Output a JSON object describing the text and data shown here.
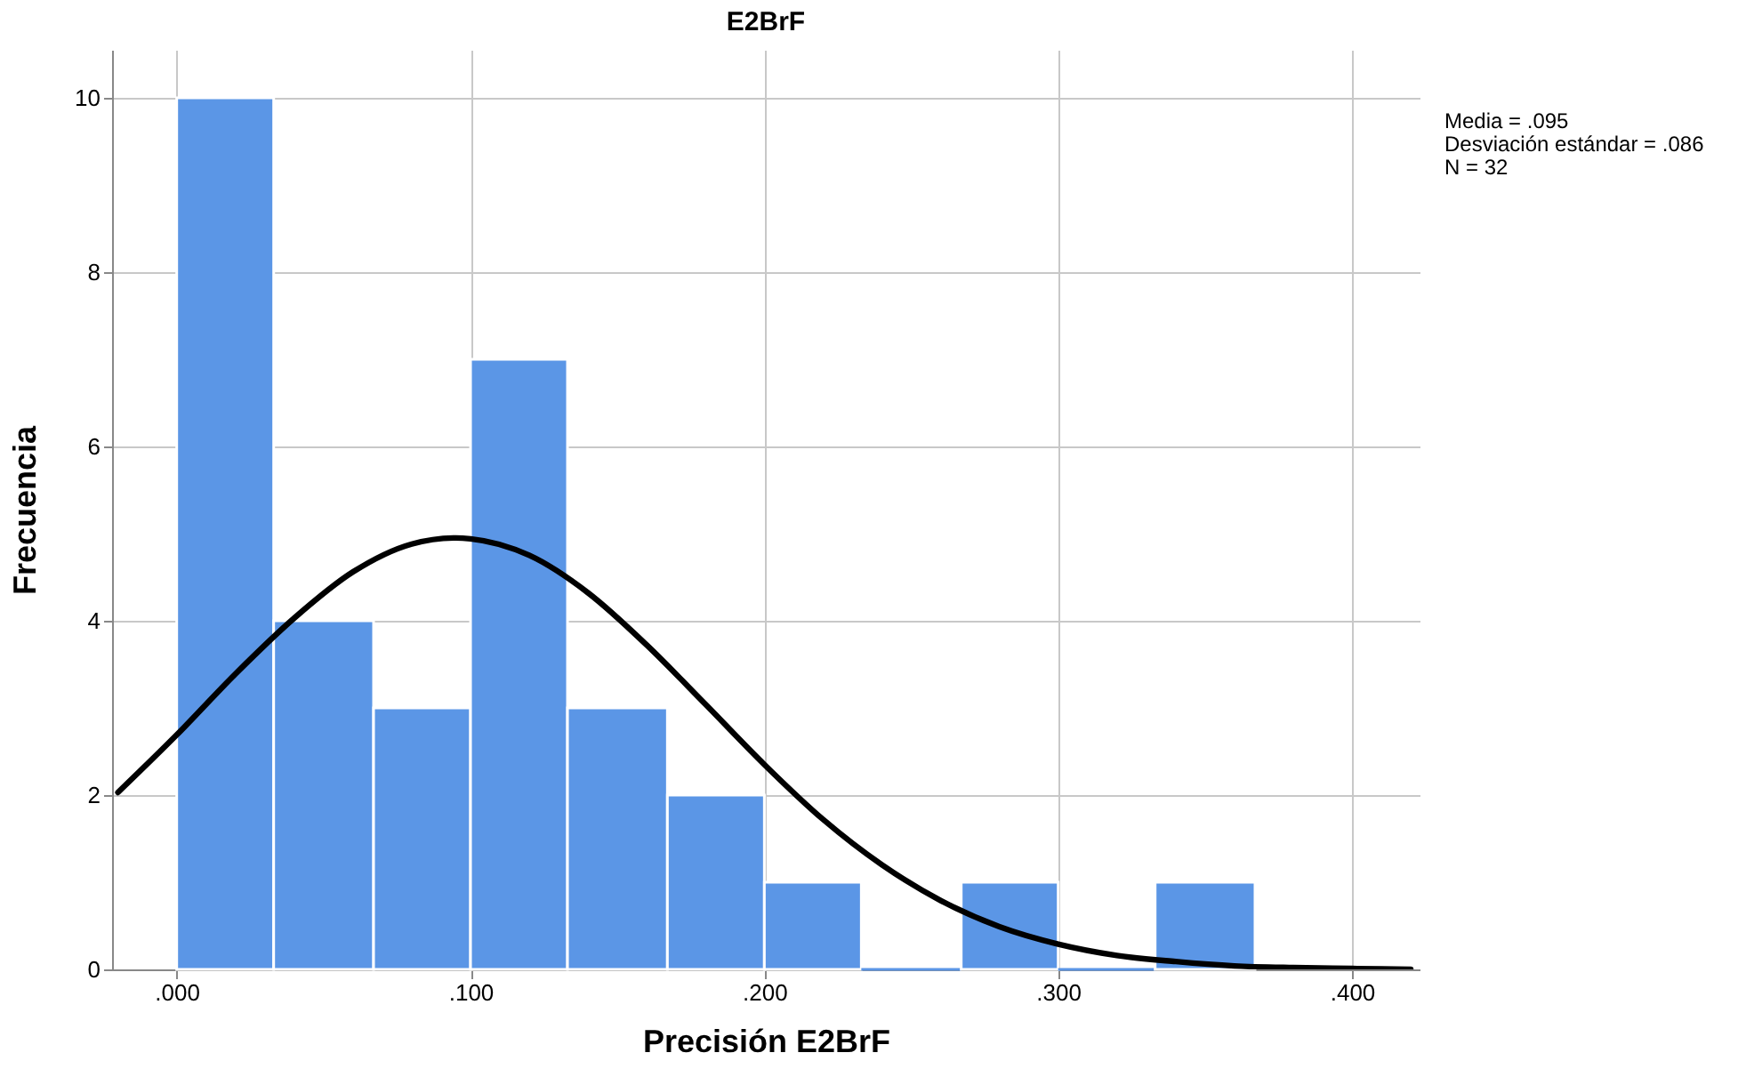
{
  "chart_data": {
    "type": "histogram",
    "title": "E2BrF",
    "xlabel": "Precisión E2BrF",
    "ylabel": "Frecuencia",
    "series": [
      {
        "color": "#5b96e6",
        "bins": [
          0.0,
          0.033,
          0.067,
          0.1,
          0.133,
          0.167,
          0.2,
          0.233,
          0.267,
          0.3,
          0.333,
          0.367
        ],
        "values": [
          10,
          4,
          3,
          7,
          3,
          2,
          1,
          0,
          1,
          0,
          1
        ]
      },
      {
        "type": "line",
        "color": "#000000",
        "x": [
          -0.02,
          0.0,
          0.02,
          0.04,
          0.06,
          0.08,
          0.095,
          0.1,
          0.12,
          0.14,
          0.16,
          0.18,
          0.2,
          0.22,
          0.24,
          0.26,
          0.28,
          0.3,
          0.32,
          0.34,
          0.36,
          0.38,
          0.4,
          0.42
        ],
        "values": [
          2.03,
          2.69,
          3.39,
          4.03,
          4.56,
          4.88,
          4.95,
          4.94,
          4.75,
          4.32,
          3.72,
          3.04,
          2.35,
          1.72,
          1.2,
          0.79,
          0.49,
          0.29,
          0.16,
          0.09,
          0.04,
          0.02,
          0.01,
          0.0
        ]
      }
    ],
    "xlim": [
      -0.022,
      0.423
    ],
    "xticks": [
      {
        "value": 0,
        "label": ".000"
      },
      {
        "value": 0.1,
        "label": ".100"
      },
      {
        "value": 0.2,
        "label": ".200"
      },
      {
        "value": 0.3,
        "label": ".300"
      },
      {
        "value": 0.4,
        "label": ".400"
      }
    ],
    "ylim": [
      0,
      10.55
    ],
    "yticks": [
      0,
      2,
      4,
      6,
      8,
      10
    ],
    "grid": true,
    "annotations": [
      "Media = .095",
      "Desviación estándar = .086",
      "N = 32"
    ]
  }
}
